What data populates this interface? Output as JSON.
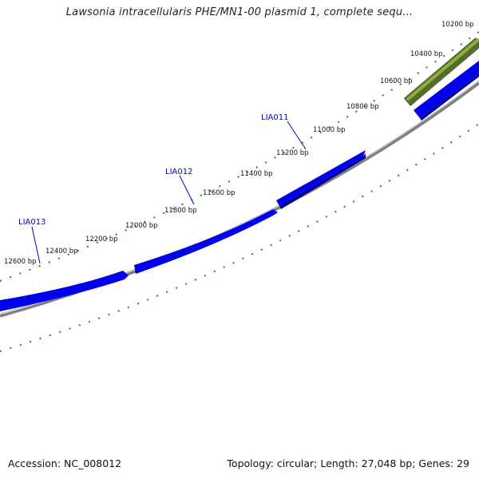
{
  "title": "Lawsonia intracellularis PHE/MN1-00 plasmid 1, complete sequ...",
  "footer": {
    "accession": "Accession: NC_008012",
    "summary": "Topology: circular; Length: 27,048 bp; Genes: 29"
  },
  "ticks": [
    {
      "label": "10200 bp"
    },
    {
      "label": "10400 bp"
    },
    {
      "label": "10600 bp"
    },
    {
      "label": "10800 bp"
    },
    {
      "label": "11000 bp"
    },
    {
      "label": "11200 bp"
    },
    {
      "label": "11400 bp"
    },
    {
      "label": "11600 bp"
    },
    {
      "label": "11800 bp"
    },
    {
      "label": "12000 bp"
    },
    {
      "label": "12200 bp"
    },
    {
      "label": "12400 bp"
    },
    {
      "label": "12600 bp"
    }
  ],
  "genes": [
    {
      "name": "LIA011"
    },
    {
      "name": "LIA012"
    },
    {
      "name": "LIA013"
    }
  ],
  "colors": {
    "forward_gene": "#0000ee",
    "reverse_gene": "#6b8e23",
    "backbone": "#808080",
    "ticks": "#228b22",
    "gene_label": "#0000cc"
  }
}
